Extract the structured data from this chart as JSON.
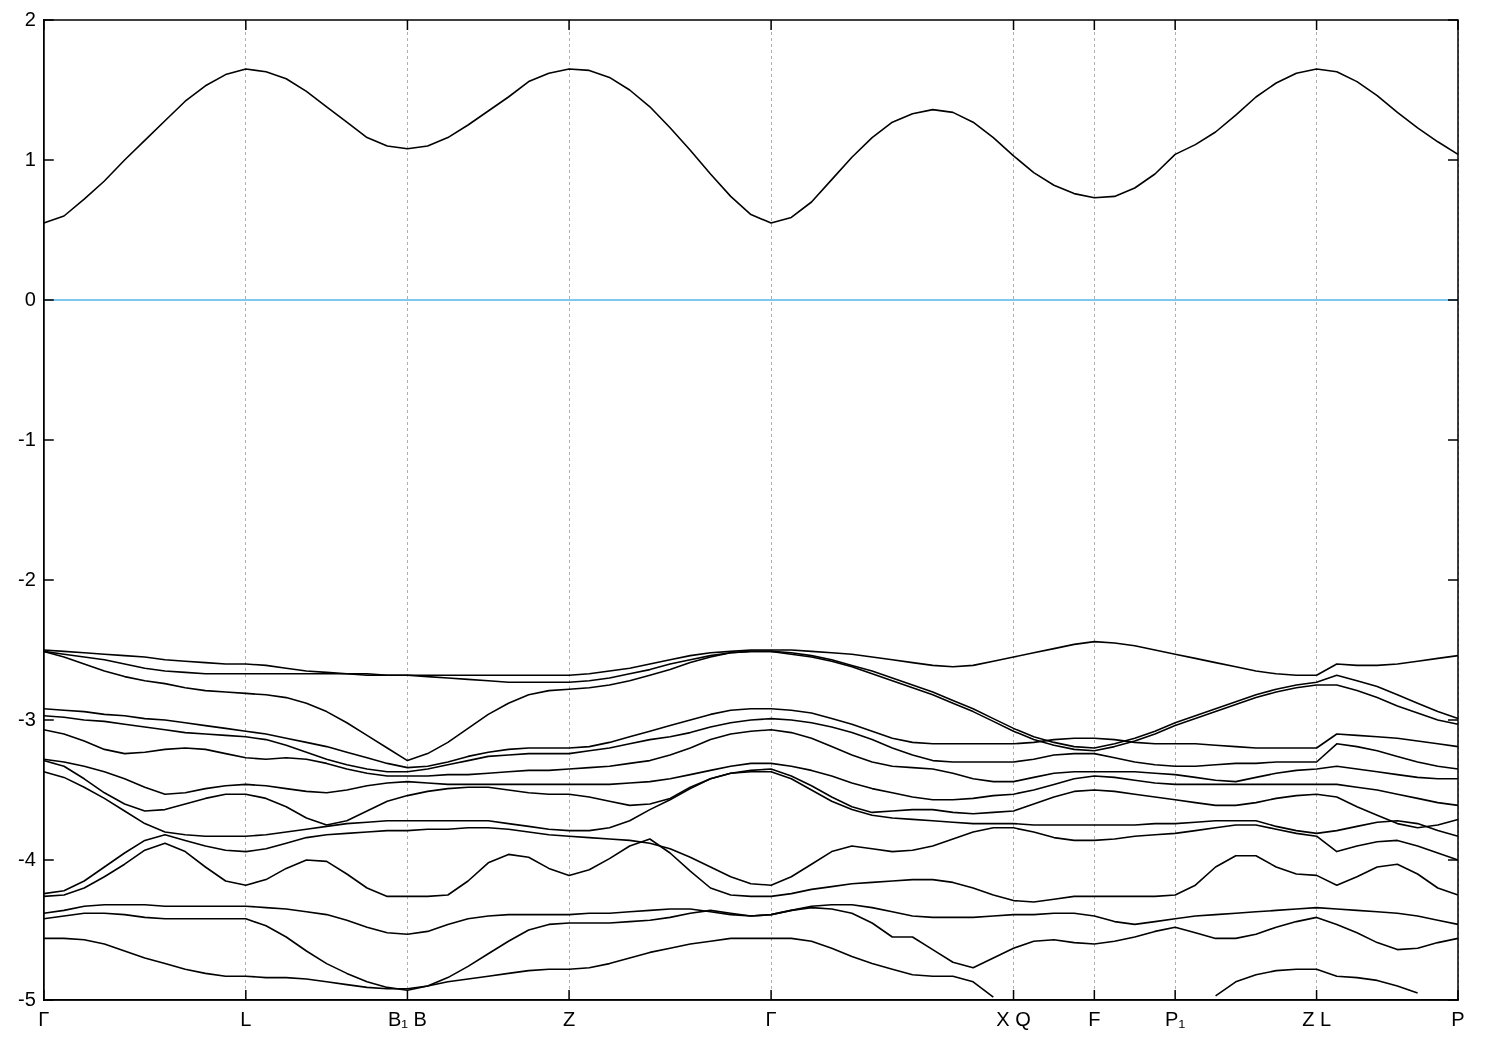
{
  "chart_data": {
    "type": "line",
    "categories": [
      "Γ",
      null,
      null,
      null,
      null,
      null,
      null,
      null,
      null,
      null,
      "L",
      null,
      null,
      null,
      null,
      null,
      null,
      null,
      "B₁ B",
      null,
      null,
      null,
      null,
      null,
      null,
      null,
      "Z",
      null,
      null,
      null,
      null,
      null,
      null,
      null,
      null,
      null,
      "Γ",
      null,
      null,
      null,
      null,
      null,
      null,
      null,
      null,
      null,
      null,
      null,
      "X Q",
      null,
      null,
      null,
      "F",
      null,
      null,
      null,
      "P₁",
      null,
      null,
      null,
      null,
      null,
      null,
      "Z L",
      null,
      null,
      null,
      null,
      null,
      null,
      "P"
    ],
    "ylim": [
      -5,
      2
    ],
    "yticks": [
      -5,
      -4,
      -3,
      -2,
      -1,
      0,
      1,
      2
    ],
    "grid": "x",
    "marker": "none",
    "line_style": "solid",
    "ref_lines": [
      {
        "axis": "y",
        "value": 0,
        "color": "#56b4e9"
      }
    ],
    "series": [
      {
        "color": "#000000",
        "values": [
          0.55,
          0.6,
          0.72,
          0.85,
          1.0,
          1.14,
          1.28,
          1.42,
          1.53,
          1.61,
          1.65,
          1.63,
          1.58,
          1.49,
          1.38,
          1.27,
          1.16,
          1.1,
          1.08,
          1.1,
          1.16,
          1.25,
          1.35,
          1.45,
          1.56,
          1.62,
          1.65,
          1.64,
          1.59,
          1.5,
          1.38,
          1.23,
          1.07,
          0.9,
          0.74,
          0.61,
          0.55,
          0.59,
          0.7,
          0.86,
          1.02,
          1.16,
          1.27,
          1.33,
          1.36,
          1.34,
          1.27,
          1.16,
          1.03,
          0.91,
          0.82,
          0.76,
          0.73,
          0.74,
          0.8,
          0.9,
          1.04,
          1.11,
          1.2,
          1.32,
          1.45,
          1.55,
          1.62,
          1.65,
          1.63,
          1.56,
          1.46,
          1.34,
          1.23,
          1.13,
          1.04
        ]
      },
      {
        "color": "#000000",
        "values": [
          -2.5,
          -2.51,
          -2.52,
          -2.53,
          -2.54,
          -2.55,
          -2.57,
          -2.58,
          -2.59,
          -2.6,
          -2.6,
          -2.61,
          -2.63,
          -2.65,
          -2.66,
          -2.67,
          -2.67,
          -2.68,
          -2.68,
          -2.68,
          -2.68,
          -2.68,
          -2.68,
          -2.68,
          -2.68,
          -2.68,
          -2.68,
          -2.67,
          -2.65,
          -2.63,
          -2.6,
          -2.57,
          -2.54,
          -2.52,
          -2.51,
          -2.5,
          -2.5,
          -2.5,
          -2.51,
          -2.52,
          -2.53,
          -2.55,
          -2.57,
          -2.59,
          -2.61,
          -2.62,
          -2.61,
          -2.58,
          -2.55,
          -2.52,
          -2.49,
          -2.46,
          -2.44,
          -2.45,
          -2.47,
          -2.5,
          -2.53,
          -2.56,
          -2.59,
          -2.62,
          -2.65,
          -2.67,
          -2.68,
          -2.68,
          -2.6,
          -2.61,
          -2.61,
          -2.6,
          -2.58,
          -2.56,
          -2.54
        ]
      },
      {
        "color": "#000000",
        "values": [
          -2.51,
          -2.53,
          -2.55,
          -2.57,
          -2.6,
          -2.63,
          -2.65,
          -2.66,
          -2.67,
          -2.67,
          -2.67,
          -2.67,
          -2.67,
          -2.67,
          -2.67,
          -2.67,
          -2.68,
          -2.68,
          -2.68,
          -2.69,
          -2.7,
          -2.71,
          -2.72,
          -2.73,
          -2.73,
          -2.73,
          -2.73,
          -2.72,
          -2.7,
          -2.67,
          -2.64,
          -2.6,
          -2.57,
          -2.54,
          -2.52,
          -2.51,
          -2.51,
          -2.52,
          -2.54,
          -2.57,
          -2.61,
          -2.65,
          -2.7,
          -2.75,
          -2.8,
          -2.86,
          -2.92,
          -2.99,
          -3.06,
          -3.12,
          -3.16,
          -3.19,
          -3.2,
          -3.17,
          -3.13,
          -3.08,
          -3.02,
          -2.97,
          -2.92,
          -2.87,
          -2.82,
          -2.78,
          -2.75,
          -2.73,
          -2.68,
          -2.72,
          -2.76,
          -2.82,
          -2.88,
          -2.94,
          -2.99
        ]
      },
      {
        "color": "#000000",
        "values": [
          -2.51,
          -2.55,
          -2.6,
          -2.65,
          -2.69,
          -2.72,
          -2.74,
          -2.77,
          -2.79,
          -2.8,
          -2.81,
          -2.82,
          -2.84,
          -2.88,
          -2.94,
          -3.02,
          -3.11,
          -3.2,
          -3.29,
          -3.24,
          -3.16,
          -3.06,
          -2.96,
          -2.88,
          -2.82,
          -2.79,
          -2.78,
          -2.77,
          -2.75,
          -2.72,
          -2.68,
          -2.64,
          -2.59,
          -2.55,
          -2.52,
          -2.51,
          -2.51,
          -2.53,
          -2.55,
          -2.58,
          -2.62,
          -2.67,
          -2.72,
          -2.77,
          -2.82,
          -2.88,
          -2.94,
          -3.01,
          -3.08,
          -3.14,
          -3.18,
          -3.21,
          -3.22,
          -3.19,
          -3.15,
          -3.1,
          -3.04,
          -2.99,
          -2.94,
          -2.89,
          -2.84,
          -2.8,
          -2.77,
          -2.75,
          -2.75,
          -2.79,
          -2.84,
          -2.9,
          -2.95,
          -3.0,
          -3.03
        ]
      },
      {
        "color": "#000000",
        "values": [
          -2.92,
          -2.93,
          -2.94,
          -2.96,
          -2.97,
          -2.99,
          -3.0,
          -3.02,
          -3.04,
          -3.06,
          -3.08,
          -3.1,
          -3.13,
          -3.16,
          -3.19,
          -3.23,
          -3.27,
          -3.31,
          -3.34,
          -3.33,
          -3.3,
          -3.26,
          -3.23,
          -3.21,
          -3.2,
          -3.2,
          -3.2,
          -3.19,
          -3.16,
          -3.12,
          -3.08,
          -3.04,
          -3.0,
          -2.96,
          -2.93,
          -2.92,
          -2.92,
          -2.93,
          -2.95,
          -2.99,
          -3.03,
          -3.08,
          -3.13,
          -3.16,
          -3.17,
          -3.17,
          -3.17,
          -3.17,
          -3.17,
          -3.16,
          -3.14,
          -3.13,
          -3.13,
          -3.14,
          -3.16,
          -3.17,
          -3.17,
          -3.17,
          -3.18,
          -3.19,
          -3.2,
          -3.2,
          -3.2,
          -3.2,
          -3.1,
          -3.11,
          -3.12,
          -3.13,
          -3.15,
          -3.17,
          -3.19
        ]
      },
      {
        "color": "#000000",
        "values": [
          -2.97,
          -2.98,
          -3.0,
          -3.01,
          -3.03,
          -3.05,
          -3.07,
          -3.09,
          -3.1,
          -3.11,
          -3.12,
          -3.14,
          -3.18,
          -3.23,
          -3.28,
          -3.32,
          -3.35,
          -3.37,
          -3.37,
          -3.35,
          -3.32,
          -3.29,
          -3.26,
          -3.25,
          -3.24,
          -3.24,
          -3.24,
          -3.22,
          -3.2,
          -3.17,
          -3.14,
          -3.12,
          -3.09,
          -3.05,
          -3.02,
          -3.0,
          -2.99,
          -3.0,
          -3.02,
          -3.05,
          -3.09,
          -3.14,
          -3.2,
          -3.25,
          -3.29,
          -3.3,
          -3.3,
          -3.3,
          -3.3,
          -3.28,
          -3.25,
          -3.24,
          -3.24,
          -3.27,
          -3.3,
          -3.32,
          -3.33,
          -3.33,
          -3.32,
          -3.31,
          -3.31,
          -3.3,
          -3.3,
          -3.3,
          -3.17,
          -3.19,
          -3.22,
          -3.26,
          -3.3,
          -3.33,
          -3.35
        ]
      },
      {
        "color": "#000000",
        "values": [
          -3.07,
          -3.1,
          -3.15,
          -3.21,
          -3.24,
          -3.23,
          -3.21,
          -3.2,
          -3.21,
          -3.24,
          -3.27,
          -3.28,
          -3.27,
          -3.28,
          -3.31,
          -3.35,
          -3.38,
          -3.4,
          -3.4,
          -3.4,
          -3.39,
          -3.39,
          -3.38,
          -3.37,
          -3.36,
          -3.36,
          -3.35,
          -3.34,
          -3.33,
          -3.31,
          -3.29,
          -3.25,
          -3.2,
          -3.14,
          -3.1,
          -3.08,
          -3.07,
          -3.09,
          -3.13,
          -3.19,
          -3.25,
          -3.3,
          -3.33,
          -3.34,
          -3.35,
          -3.38,
          -3.42,
          -3.44,
          -3.44,
          -3.41,
          -3.38,
          -3.37,
          -3.37,
          -3.37,
          -3.37,
          -3.38,
          -3.39,
          -3.41,
          -3.43,
          -3.44,
          -3.41,
          -3.38,
          -3.36,
          -3.35,
          -3.33,
          -3.35,
          -3.37,
          -3.39,
          -3.41,
          -3.42,
          -3.42
        ]
      },
      {
        "color": "#000000",
        "values": [
          -3.28,
          -3.3,
          -3.33,
          -3.37,
          -3.42,
          -3.48,
          -3.53,
          -3.52,
          -3.49,
          -3.47,
          -3.46,
          -3.47,
          -3.49,
          -3.51,
          -3.52,
          -3.5,
          -3.47,
          -3.45,
          -3.44,
          -3.45,
          -3.46,
          -3.46,
          -3.46,
          -3.46,
          -3.46,
          -3.46,
          -3.46,
          -3.46,
          -3.46,
          -3.45,
          -3.44,
          -3.42,
          -3.39,
          -3.36,
          -3.33,
          -3.31,
          -3.31,
          -3.33,
          -3.36,
          -3.4,
          -3.45,
          -3.49,
          -3.52,
          -3.55,
          -3.57,
          -3.57,
          -3.56,
          -3.54,
          -3.53,
          -3.5,
          -3.46,
          -3.42,
          -3.4,
          -3.41,
          -3.43,
          -3.45,
          -3.46,
          -3.46,
          -3.46,
          -3.46,
          -3.46,
          -3.46,
          -3.46,
          -3.46,
          -3.46,
          -3.48,
          -3.5,
          -3.53,
          -3.56,
          -3.59,
          -3.61
        ]
      },
      {
        "color": "#000000",
        "values": [
          -3.29,
          -3.33,
          -3.42,
          -3.52,
          -3.6,
          -3.65,
          -3.64,
          -3.6,
          -3.56,
          -3.53,
          -3.53,
          -3.56,
          -3.62,
          -3.7,
          -3.75,
          -3.72,
          -3.65,
          -3.58,
          -3.54,
          -3.51,
          -3.49,
          -3.48,
          -3.48,
          -3.5,
          -3.52,
          -3.53,
          -3.53,
          -3.55,
          -3.58,
          -3.61,
          -3.6,
          -3.56,
          -3.48,
          -3.42,
          -3.38,
          -3.36,
          -3.35,
          -3.4,
          -3.47,
          -3.55,
          -3.62,
          -3.66,
          -3.65,
          -3.64,
          -3.64,
          -3.66,
          -3.67,
          -3.66,
          -3.65,
          -3.6,
          -3.55,
          -3.51,
          -3.5,
          -3.51,
          -3.53,
          -3.55,
          -3.57,
          -3.59,
          -3.61,
          -3.61,
          -3.59,
          -3.56,
          -3.54,
          -3.53,
          -3.55,
          -3.62,
          -3.68,
          -3.74,
          -3.77,
          -3.75,
          -3.71
        ]
      },
      {
        "color": "#000000",
        "values": [
          -3.37,
          -3.41,
          -3.48,
          -3.56,
          -3.65,
          -3.74,
          -3.8,
          -3.82,
          -3.83,
          -3.83,
          -3.83,
          -3.82,
          -3.8,
          -3.78,
          -3.76,
          -3.74,
          -3.73,
          -3.72,
          -3.72,
          -3.72,
          -3.72,
          -3.72,
          -3.72,
          -3.74,
          -3.76,
          -3.78,
          -3.79,
          -3.79,
          -3.77,
          -3.72,
          -3.64,
          -3.57,
          -3.49,
          -3.42,
          -3.38,
          -3.37,
          -3.37,
          -3.42,
          -3.5,
          -3.58,
          -3.64,
          -3.68,
          -3.7,
          -3.71,
          -3.72,
          -3.73,
          -3.74,
          -3.74,
          -3.74,
          -3.75,
          -3.75,
          -3.75,
          -3.75,
          -3.75,
          -3.75,
          -3.74,
          -3.74,
          -3.73,
          -3.72,
          -3.72,
          -3.72,
          -3.76,
          -3.79,
          -3.81,
          -3.79,
          -3.76,
          -3.73,
          -3.72,
          -3.74,
          -3.79,
          -3.83
        ]
      },
      {
        "color": "#000000",
        "values": [
          -4.24,
          -4.22,
          -4.15,
          -4.05,
          -3.95,
          -3.86,
          -3.82,
          -3.86,
          -3.9,
          -3.93,
          -3.94,
          -3.92,
          -3.88,
          -3.84,
          -3.82,
          -3.81,
          -3.8,
          -3.79,
          -3.79,
          -3.78,
          -3.78,
          -3.77,
          -3.77,
          -3.78,
          -3.8,
          -3.82,
          -3.83,
          -3.84,
          -3.85,
          -3.86,
          -3.88,
          -3.92,
          -3.98,
          -4.05,
          -4.12,
          -4.17,
          -4.18,
          -4.12,
          -4.03,
          -3.94,
          -3.9,
          -3.92,
          -3.94,
          -3.93,
          -3.9,
          -3.85,
          -3.8,
          -3.77,
          -3.77,
          -3.8,
          -3.84,
          -3.86,
          -3.86,
          -3.85,
          -3.83,
          -3.82,
          -3.81,
          -3.79,
          -3.77,
          -3.75,
          -3.75,
          -3.78,
          -3.81,
          -3.83,
          -3.94,
          -3.9,
          -3.87,
          -3.86,
          -3.9,
          -3.95,
          -4.0
        ]
      },
      {
        "color": "#000000",
        "values": [
          -4.26,
          -4.25,
          -4.2,
          -4.12,
          -4.03,
          -3.93,
          -3.88,
          -3.94,
          -4.05,
          -4.15,
          -4.18,
          -4.14,
          -4.06,
          -4.0,
          -4.01,
          -4.1,
          -4.2,
          -4.26,
          -4.26,
          -4.26,
          -4.25,
          -4.15,
          -4.02,
          -3.96,
          -3.98,
          -4.06,
          -4.11,
          -4.07,
          -3.99,
          -3.9,
          -3.85,
          -3.95,
          -4.08,
          -4.2,
          -4.25,
          -4.26,
          -4.26,
          -4.24,
          -4.21,
          -4.19,
          -4.17,
          -4.16,
          -4.15,
          -4.14,
          -4.14,
          -4.16,
          -4.2,
          -4.25,
          -4.29,
          -4.3,
          -4.28,
          -4.26,
          -4.26,
          -4.26,
          -4.26,
          -4.26,
          -4.25,
          -4.18,
          -4.05,
          -3.97,
          -3.97,
          -4.05,
          -4.1,
          -4.11,
          -4.18,
          -4.12,
          -4.05,
          -4.03,
          -4.1,
          -4.2,
          -4.25
        ]
      },
      {
        "color": "#000000",
        "values": [
          -4.38,
          -4.36,
          -4.33,
          -4.32,
          -4.32,
          -4.32,
          -4.33,
          -4.33,
          -4.33,
          -4.33,
          -4.33,
          -4.34,
          -4.35,
          -4.37,
          -4.39,
          -4.43,
          -4.48,
          -4.52,
          -4.53,
          -4.51,
          -4.46,
          -4.42,
          -4.4,
          -4.39,
          -4.39,
          -4.39,
          -4.39,
          -4.38,
          -4.38,
          -4.37,
          -4.36,
          -4.35,
          -4.35,
          -4.37,
          -4.39,
          -4.4,
          -4.39,
          -4.36,
          -4.33,
          -4.32,
          -4.32,
          -4.34,
          -4.37,
          -4.4,
          -4.41,
          -4.41,
          -4.41,
          -4.4,
          -4.39,
          -4.39,
          -4.38,
          -4.38,
          -4.4,
          -4.44,
          -4.46,
          -4.44,
          -4.42,
          -4.4,
          -4.39,
          -4.38,
          -4.37,
          -4.36,
          -4.35,
          -4.34,
          -4.35,
          -4.36,
          -4.37,
          -4.38,
          -4.4,
          -4.43,
          -4.46
        ]
      },
      {
        "color": "#000000",
        "values": [
          -4.42,
          -4.4,
          -4.38,
          -4.38,
          -4.39,
          -4.41,
          -4.42,
          -4.42,
          -4.42,
          -4.42,
          -4.42,
          -4.47,
          -4.55,
          -4.65,
          -4.74,
          -4.81,
          -4.87,
          -4.91,
          -4.93,
          -4.9,
          -4.84,
          -4.76,
          -4.67,
          -4.58,
          -4.5,
          -4.46,
          -4.45,
          -4.45,
          -4.45,
          -4.44,
          -4.43,
          -4.41,
          -4.38,
          -4.36,
          -4.38,
          -4.4,
          -4.39,
          -4.36,
          -4.34,
          -4.35,
          -4.38,
          -4.45,
          -4.55,
          -4.55,
          -4.64,
          -4.73,
          -4.77,
          -4.7,
          -4.63,
          -4.58,
          -4.57,
          -4.59,
          -4.6,
          -4.58,
          -4.55,
          -4.51,
          -4.48,
          -4.52,
          -4.56,
          -4.56,
          -4.53,
          -4.48,
          -4.44,
          -4.41,
          -4.46,
          -4.52,
          -4.59,
          -4.64,
          -4.63,
          -4.59,
          -4.56
        ]
      },
      {
        "color": "#000000",
        "values": [
          -4.56,
          -4.56,
          -4.57,
          -4.6,
          -4.65,
          -4.7,
          -4.74,
          -4.78,
          -4.81,
          -4.83,
          -4.83,
          -4.84,
          -4.84,
          -4.85,
          -4.87,
          -4.89,
          -4.91,
          -4.92,
          -4.92,
          -4.9,
          -4.87,
          -4.85,
          -4.83,
          -4.81,
          -4.79,
          -4.78,
          -4.78,
          -4.77,
          -4.74,
          -4.7,
          -4.66,
          -4.63,
          -4.6,
          -4.58,
          -4.56,
          -4.56,
          -4.56,
          -4.56,
          -4.58,
          -4.63,
          -4.69,
          -4.74,
          -4.78,
          -4.82,
          -4.83,
          -4.83,
          -4.87,
          -4.98,
          null,
          null,
          null,
          null,
          null,
          null,
          null,
          null,
          null,
          null,
          -4.97,
          -4.87,
          -4.82,
          -4.79,
          -4.78,
          -4.78,
          -4.83,
          -4.84,
          -4.86,
          -4.9,
          -4.95,
          null,
          null
        ]
      }
    ]
  }
}
